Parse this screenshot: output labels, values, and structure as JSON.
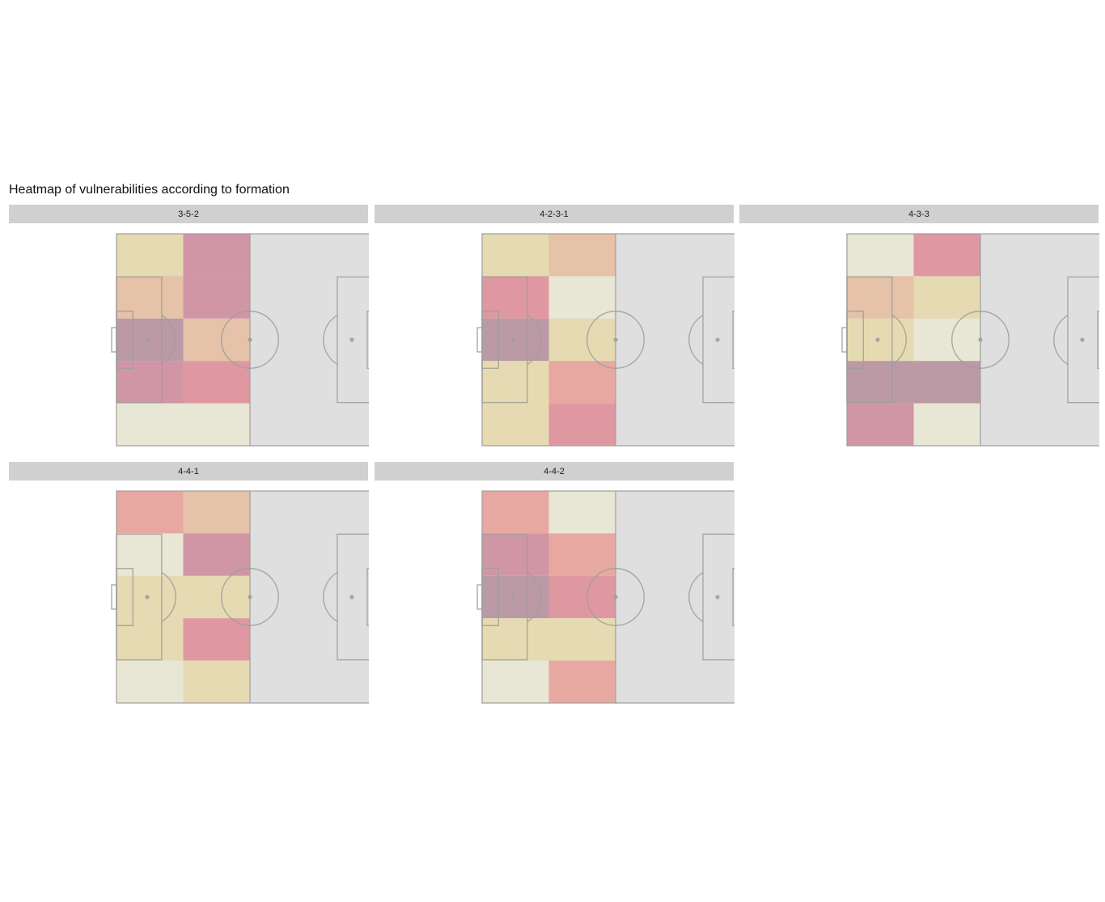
{
  "title": "Heatmap of vulnerabilities according to formation",
  "chart_data": {
    "type": "heatmap",
    "title": "Heatmap of vulnerabilities according to formation",
    "grid": "5 horizontal bands x 2 vertical zones of own half (defensive third + middle zone)",
    "color_scale": [
      "#e8e6d4",
      "#e6dab2",
      "#e5c2a8",
      "#e8a8a2",
      "#df98a1",
      "#d196a6",
      "#bb9aa6"
    ],
    "pitch_colors": {
      "background": "#dfdfdf",
      "lines": "#9e9e9e"
    },
    "panels": [
      {
        "formation": "3-5-2",
        "cells": [
          [
            1,
            5
          ],
          [
            2,
            5
          ],
          [
            6,
            2
          ],
          [
            5,
            4
          ],
          [
            0,
            0
          ]
        ]
      },
      {
        "formation": "4-2-3-1",
        "cells": [
          [
            1,
            2
          ],
          [
            4,
            0
          ],
          [
            6,
            1
          ],
          [
            1,
            3
          ],
          [
            1,
            4
          ]
        ]
      },
      {
        "formation": "4-3-3",
        "cells": [
          [
            0,
            4
          ],
          [
            2,
            1
          ],
          [
            1,
            0
          ],
          [
            6,
            6
          ],
          [
            5,
            0
          ]
        ]
      },
      {
        "formation": "4-4-1",
        "cells": [
          [
            3,
            2
          ],
          [
            0,
            5
          ],
          [
            1,
            1
          ],
          [
            1,
            4
          ],
          [
            0,
            1
          ]
        ]
      },
      {
        "formation": "4-4-2",
        "cells": [
          [
            3,
            0
          ],
          [
            5,
            3
          ],
          [
            6,
            4
          ],
          [
            1,
            1
          ],
          [
            0,
            3
          ]
        ]
      }
    ]
  }
}
